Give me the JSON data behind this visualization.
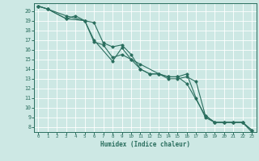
{
  "xlabel": "Humidex (Indice chaleur)",
  "ylabel": "",
  "background_color": "#cde8e4",
  "grid_color": "#ffffff",
  "line_color": "#2a6e5e",
  "spine_color": "#2a6e5e",
  "tick_color": "#2a6e5e",
  "xlim": [
    -0.5,
    23.5
  ],
  "ylim": [
    7.5,
    20.8
  ],
  "xticks": [
    0,
    1,
    2,
    3,
    4,
    5,
    6,
    7,
    8,
    9,
    10,
    11,
    12,
    13,
    14,
    15,
    16,
    17,
    18,
    19,
    20,
    21,
    22,
    23
  ],
  "yticks": [
    8,
    9,
    10,
    11,
    12,
    13,
    14,
    15,
    16,
    17,
    18,
    19,
    20
  ],
  "series": [
    {
      "x": [
        0,
        1,
        3,
        5,
        6,
        8,
        9,
        10,
        11,
        13,
        14,
        15,
        16,
        18,
        19,
        20,
        21,
        22,
        23
      ],
      "y": [
        20.5,
        20.2,
        19.5,
        19.0,
        17.0,
        14.8,
        16.2,
        15.0,
        14.5,
        13.5,
        13.2,
        13.2,
        12.5,
        9.2,
        8.5,
        8.5,
        8.5,
        8.5,
        7.7
      ]
    },
    {
      "x": [
        0,
        1,
        3,
        4,
        5,
        6,
        7,
        8,
        9,
        10,
        11,
        12,
        13,
        14,
        15,
        16,
        17,
        18,
        19,
        20,
        21,
        22,
        23
      ],
      "y": [
        20.5,
        20.2,
        19.2,
        19.5,
        19.0,
        18.8,
        16.7,
        16.3,
        16.5,
        15.5,
        14.0,
        13.5,
        13.5,
        13.0,
        13.0,
        13.2,
        12.7,
        9.2,
        8.5,
        8.5,
        8.5,
        8.5,
        7.5
      ]
    },
    {
      "x": [
        0,
        1,
        3,
        5,
        6,
        7,
        8,
        9,
        10,
        11,
        12,
        13,
        14,
        15,
        16,
        17,
        18,
        19,
        20,
        21,
        22,
        23
      ],
      "y": [
        20.5,
        20.2,
        19.2,
        19.0,
        16.8,
        16.5,
        15.2,
        15.5,
        15.0,
        14.0,
        13.5,
        13.5,
        13.2,
        13.2,
        13.5,
        11.0,
        9.0,
        8.5,
        8.5,
        8.5,
        8.5,
        7.7
      ]
    }
  ]
}
